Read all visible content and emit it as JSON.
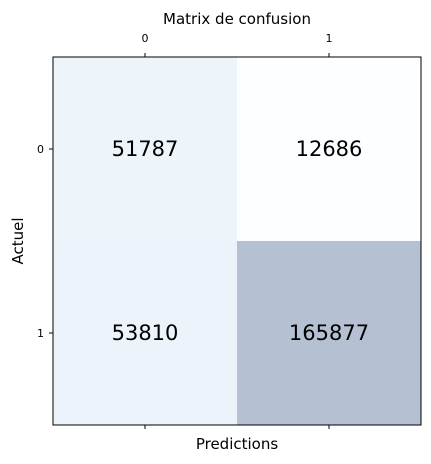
{
  "chart_data": {
    "type": "heatmap",
    "title": "Matrix de confusion",
    "xlabel": "Predictions",
    "ylabel": "Actuel",
    "x_ticks": [
      "0",
      "1"
    ],
    "y_ticks": [
      "0",
      "1"
    ],
    "values": [
      [
        51787,
        12686
      ],
      [
        53810,
        165877
      ]
    ],
    "value_labels": [
      [
        "51787",
        "12686"
      ],
      [
        "53810",
        "165877"
      ]
    ],
    "x_axis_position": "top",
    "colormap": "Blues",
    "colormap_alpha": 0.3,
    "grid": false,
    "legend": "none"
  }
}
